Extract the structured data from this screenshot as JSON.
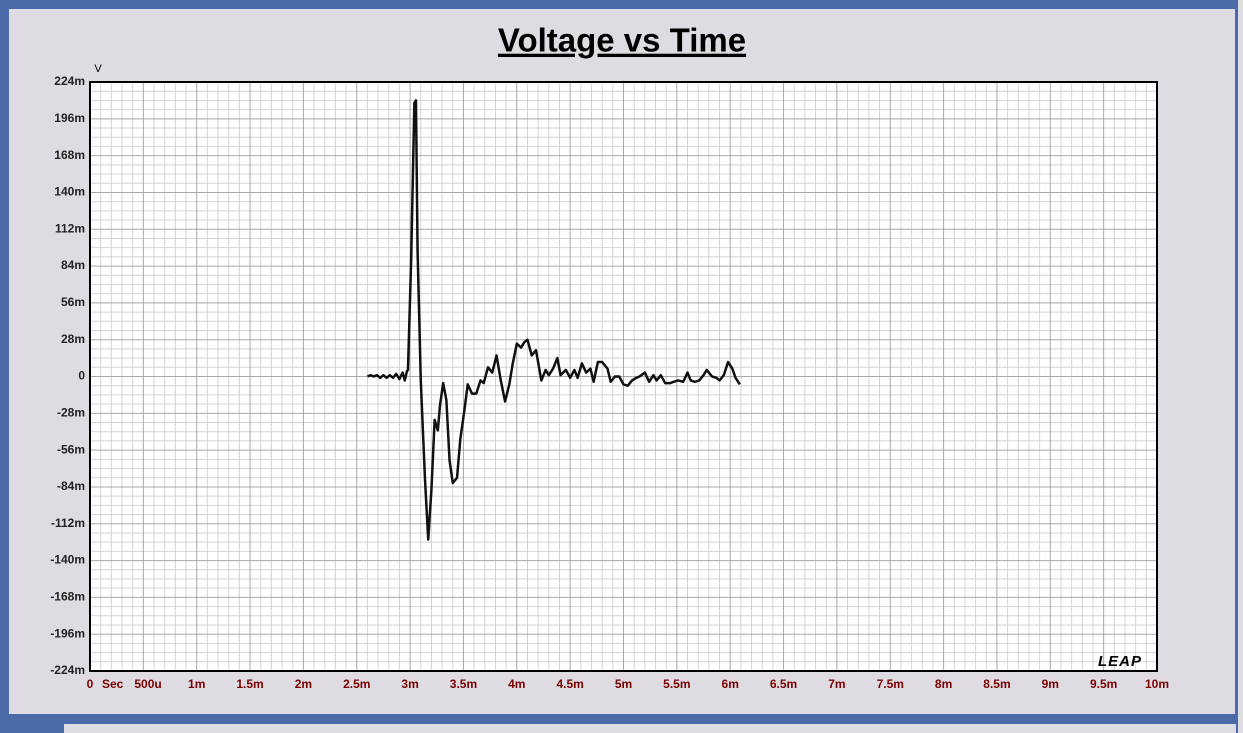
{
  "chart_data": {
    "type": "line",
    "title": "Voltage vs Time",
    "y_unit": "V",
    "x_unit": "Sec",
    "logo": "LEAP",
    "color": "#111111",
    "grid": true,
    "xlim": [
      0,
      0.01
    ],
    "xticks": [
      0,
      {
        "value": 0.0005,
        "label": "500u"
      },
      {
        "value": 0.001,
        "label": "1m"
      },
      {
        "value": 0.0015,
        "label": "1.5m"
      },
      {
        "value": 0.002,
        "label": "2m"
      },
      {
        "value": 0.0025,
        "label": "2.5m"
      },
      {
        "value": 0.003,
        "label": "3m"
      },
      {
        "value": 0.0035,
        "label": "3.5m"
      },
      {
        "value": 0.004,
        "label": "4m"
      },
      {
        "value": 0.0045,
        "label": "4.5m"
      },
      {
        "value": 0.005,
        "label": "5m"
      },
      {
        "value": 0.0055,
        "label": "5.5m"
      },
      {
        "value": 0.006,
        "label": "6m"
      },
      {
        "value": 0.0065,
        "label": "6.5m"
      },
      {
        "value": 0.007,
        "label": "7m"
      },
      {
        "value": 0.0075,
        "label": "7.5m"
      },
      {
        "value": 0.008,
        "label": "8m"
      },
      {
        "value": 0.0085,
        "label": "8.5m"
      },
      {
        "value": 0.009,
        "label": "9m"
      },
      {
        "value": 0.0095,
        "label": "9.5m"
      },
      {
        "value": 0.01,
        "label": "10m"
      }
    ],
    "ylim": [
      -0.224,
      0.224
    ],
    "yticks": [
      {
        "value": 0.224,
        "label": "224m"
      },
      {
        "value": 0.196,
        "label": "196m"
      },
      {
        "value": 0.168,
        "label": "168m"
      },
      {
        "value": 0.14,
        "label": "140m"
      },
      {
        "value": 0.112,
        "label": "112m"
      },
      {
        "value": 0.084,
        "label": "84m"
      },
      {
        "value": 0.056,
        "label": "56m"
      },
      {
        "value": 0.028,
        "label": "28m"
      },
      0,
      {
        "value": -0.028,
        "label": "-28m"
      },
      {
        "value": -0.056,
        "label": "-56m"
      },
      {
        "value": -0.084,
        "label": "-84m"
      },
      {
        "value": -0.112,
        "label": "-112m"
      },
      {
        "value": -0.14,
        "label": "-140m"
      },
      {
        "value": -0.168,
        "label": "-168m"
      },
      {
        "value": -0.196,
        "label": "-196m"
      },
      {
        "value": -0.224,
        "label": "-224m"
      }
    ],
    "x": [
      0.0026,
      0.00263,
      0.00266,
      0.00269,
      0.00272,
      0.00275,
      0.00278,
      0.00281,
      0.00284,
      0.00287,
      0.0029,
      0.00293,
      0.00295,
      0.00297,
      0.00298,
      0.00301,
      0.00304,
      0.003055,
      0.00307,
      0.0031,
      0.00314,
      0.00317,
      0.0032,
      0.00323,
      0.00326,
      0.00328,
      0.00331,
      0.00334,
      0.00337,
      0.0034,
      0.00344,
      0.00347,
      0.00351,
      0.00354,
      0.00358,
      0.00362,
      0.00366,
      0.00369,
      0.00373,
      0.00377,
      0.00381,
      0.00385,
      0.00389,
      0.00393,
      0.00396,
      0.004,
      0.00404,
      0.00407,
      0.0041,
      0.00414,
      0.00418,
      0.00423,
      0.00427,
      0.0043,
      0.00434,
      0.00438,
      0.00441,
      0.00446,
      0.0045,
      0.00454,
      0.00457,
      0.00461,
      0.00465,
      0.00469,
      0.00472,
      0.00476,
      0.0048,
      0.00485,
      0.00488,
      0.00492,
      0.00496,
      0.005,
      0.00504,
      0.00508,
      0.00512,
      0.00515,
      0.0052,
      0.00524,
      0.00528,
      0.00531,
      0.00535,
      0.00539,
      0.00544,
      0.00547,
      0.00551,
      0.00556,
      0.0056,
      0.00563,
      0.00567,
      0.00571,
      0.00575,
      0.00578,
      0.00583,
      0.00587,
      0.0059,
      0.00594,
      0.00598,
      0.00602,
      0.00605,
      0.00609
    ],
    "values": [
      0,
      0.001,
      0,
      0.001,
      -0.001,
      0.001,
      -0.001,
      0.001,
      -0.001,
      0.002,
      -0.002,
      0.003,
      -0.003,
      0.004,
      0.005,
      0.089,
      0.208,
      0.21,
      0.096,
      -0.003,
      -0.079,
      -0.124,
      -0.086,
      -0.033,
      -0.041,
      -0.022,
      -0.005,
      -0.018,
      -0.064,
      -0.081,
      -0.077,
      -0.048,
      -0.025,
      -0.006,
      -0.013,
      -0.013,
      -0.003,
      -0.005,
      0.007,
      0.003,
      0.016,
      -0.003,
      -0.019,
      -0.006,
      0.009,
      0.025,
      0.022,
      0.026,
      0.028,
      0.016,
      0.02,
      -0.003,
      0.005,
      0.001,
      0.006,
      0.014,
      0.001,
      0.005,
      -0.001,
      0.005,
      -0.001,
      0.01,
      0.003,
      0.006,
      -0.004,
      0.011,
      0.011,
      0.006,
      -0.004,
      0,
      0,
      -0.006,
      -0.007,
      -0.003,
      -0.001,
      0,
      0.003,
      -0.004,
      0.001,
      -0.003,
      0.001,
      -0.005,
      -0.005,
      -0.004,
      -0.003,
      -0.004,
      0.003,
      -0.003,
      -0.004,
      -0.003,
      0.001,
      0.005,
      0,
      -0.001,
      -0.003,
      0.001,
      0.011,
      0.006,
      -0.001,
      -0.006
    ]
  }
}
